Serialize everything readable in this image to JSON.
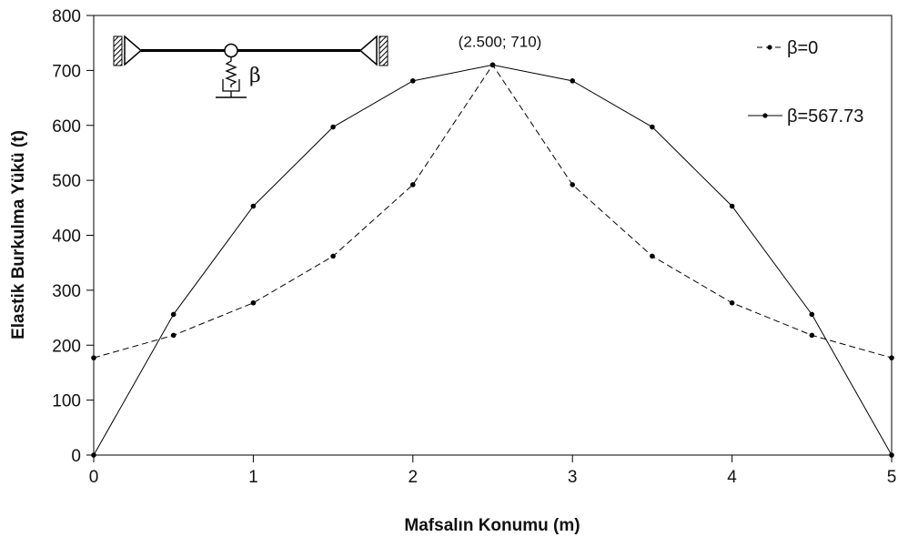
{
  "chart_data": {
    "type": "line",
    "title": "",
    "xlabel": "Mafsalın Konumu (m)",
    "ylabel": "Elastik Burkulma Yükü (t)",
    "xlim": [
      0,
      5
    ],
    "ylim": [
      0,
      800
    ],
    "xticks": [
      "0",
      "1",
      "2",
      "3",
      "4",
      "5"
    ],
    "yticks": [
      "0",
      "100",
      "200",
      "300",
      "400",
      "500",
      "600",
      "700",
      "800"
    ],
    "x": [
      0,
      0.5,
      1,
      1.5,
      2,
      2.5,
      3,
      3.5,
      4,
      4.5,
      5
    ],
    "series": [
      {
        "name": "β=0",
        "style": "dashed",
        "color": "#000000",
        "values": [
          177,
          218,
          277,
          362,
          492,
          710,
          492,
          362,
          277,
          218,
          177
        ]
      },
      {
        "name": "β=567.73",
        "style": "solid",
        "color": "#000000",
        "values": [
          0,
          256,
          453,
          597,
          681,
          710,
          681,
          597,
          453,
          256,
          0
        ]
      }
    ],
    "annotation": {
      "text": "(2.500; 710)",
      "x": 2.5,
      "y": 710
    },
    "inset_symbol": "β",
    "grid": false,
    "legend_position": "top-right"
  }
}
